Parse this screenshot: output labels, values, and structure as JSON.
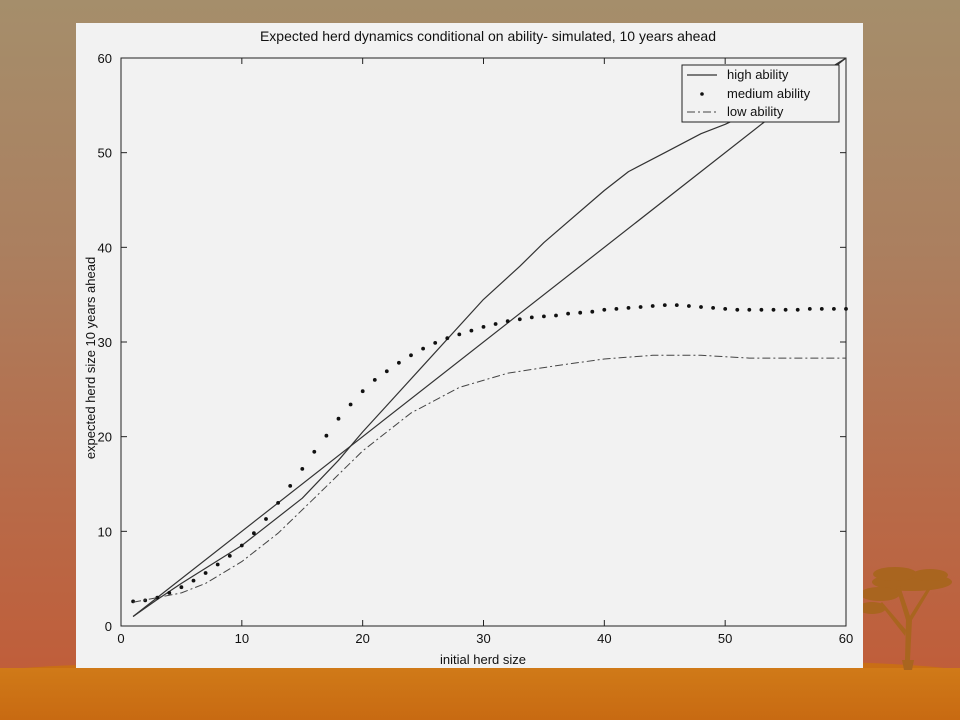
{
  "chart_data": {
    "type": "line",
    "title": "Expected herd dynamics conditional on ability- simulated, 10 years ahead",
    "xlabel": "initial herd size",
    "ylabel": "expected herd size 10 years ahead",
    "xlim": [
      0,
      60
    ],
    "ylim": [
      0,
      60
    ],
    "xticks": [
      0,
      10,
      20,
      30,
      40,
      50,
      60
    ],
    "yticks": [
      0,
      10,
      20,
      30,
      40,
      50,
      60
    ],
    "grid": false,
    "legend_position": "top-right",
    "reference_line": {
      "x": [
        1,
        60
      ],
      "y": [
        1,
        60
      ]
    },
    "series": [
      {
        "name": "high ability",
        "style": "solid",
        "x": [
          1,
          3,
          5,
          10,
          15,
          18,
          20,
          25,
          30,
          33,
          35,
          40,
          42,
          45,
          48,
          50,
          55,
          60
        ],
        "y": [
          1.0,
          2.8,
          4.5,
          8.5,
          13.5,
          17.5,
          20.5,
          27.5,
          34.5,
          38,
          40.5,
          46,
          48,
          50,
          52,
          53,
          56,
          60
        ]
      },
      {
        "name": "medium ability",
        "style": "dotted",
        "x": [
          1,
          2,
          3,
          4,
          5,
          6,
          7,
          8,
          9,
          10,
          11,
          12,
          13,
          14,
          15,
          16,
          17,
          18,
          19,
          20,
          21,
          22,
          23,
          24,
          25,
          26,
          27,
          28,
          29,
          30,
          31,
          32,
          33,
          34,
          35,
          36,
          37,
          38,
          39,
          40,
          41,
          42,
          43,
          44,
          45,
          46,
          47,
          48,
          49,
          50,
          51,
          52,
          53,
          54,
          55,
          56,
          57,
          58,
          59,
          60
        ],
        "y": [
          2.6,
          2.7,
          3.0,
          3.5,
          4.1,
          4.8,
          5.6,
          6.5,
          7.4,
          8.5,
          9.8,
          11.3,
          13.0,
          14.8,
          16.6,
          18.4,
          20.1,
          21.9,
          23.4,
          24.8,
          26.0,
          26.9,
          27.8,
          28.6,
          29.3,
          29.9,
          30.4,
          30.8,
          31.2,
          31.6,
          31.9,
          32.2,
          32.4,
          32.6,
          32.7,
          32.8,
          33.0,
          33.1,
          33.2,
          33.4,
          33.5,
          33.6,
          33.7,
          33.8,
          33.9,
          33.9,
          33.8,
          33.7,
          33.6,
          33.5,
          33.4,
          33.4,
          33.4,
          33.4,
          33.4,
          33.4,
          33.5,
          33.5,
          33.5,
          33.5
        ]
      },
      {
        "name": "low ability",
        "style": "dashdot",
        "x": [
          1,
          3,
          5,
          7,
          10,
          13,
          16,
          20,
          24,
          28,
          32,
          36,
          40,
          44,
          48,
          52,
          56,
          60
        ],
        "y": [
          2.5,
          3.0,
          3.5,
          4.5,
          6.8,
          9.8,
          13.5,
          18.5,
          22.5,
          25.2,
          26.7,
          27.5,
          28.2,
          28.6,
          28.6,
          28.3,
          28.3,
          28.3
        ]
      }
    ]
  }
}
